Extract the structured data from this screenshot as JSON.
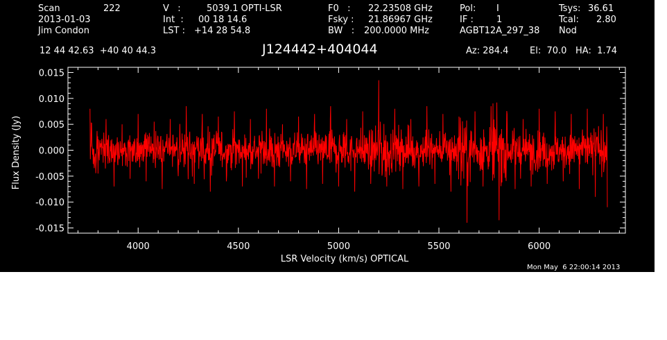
{
  "header": {
    "col1": [
      {
        "label": "Scan",
        "value": "222"
      },
      {
        "label": "2013-01-03",
        "value": ""
      },
      {
        "label": "Jim Condon",
        "value": ""
      }
    ],
    "col2": [
      {
        "label": "V   :",
        "value": "5039.1 OPTI-LSR"
      },
      {
        "label": "Int  :",
        "value": "00 18 14.6"
      },
      {
        "label": "LST :",
        "value": "+14 28 54.8"
      }
    ],
    "col3": [
      {
        "label": "F0   :",
        "value": "22.23508 GHz"
      },
      {
        "label": "Fsky :",
        "value": "21.86967 GHz"
      },
      {
        "label": "BW   :",
        "value": "200.0000 MHz"
      }
    ],
    "col4": [
      {
        "label": "Pol:",
        "value": "I"
      },
      {
        "label": "IF :",
        "value": "1"
      },
      {
        "label": "AGBT12A_297_38",
        "value": ""
      }
    ],
    "col5": [
      {
        "label": "Tsys:",
        "value": "36.61"
      },
      {
        "label": "Tcal:",
        "value": "2.80"
      },
      {
        "label": "Nod",
        "value": ""
      }
    ],
    "coords": "12 44 42.63  +40 40 44.3",
    "source": "J124442+404044",
    "az": "Az: 284.4",
    "el": "El:  70.0",
    "ha": "HA:  1.74"
  },
  "timestamp": "Mon May  6 22:00:14 2013",
  "colors": {
    "background": "#000000",
    "axes": "#ffffff",
    "trace": "#ff0000"
  },
  "chart_data": {
    "type": "line",
    "title": "J124442+404044",
    "xlabel": "LSR Velocity (km/s) OPTICAL",
    "ylabel": "Flux Density (Jy)",
    "xlim": [
      3650,
      6430
    ],
    "ylim": [
      -0.016,
      0.016
    ],
    "xticks": [
      4000,
      4500,
      5000,
      5500,
      6000
    ],
    "xtick_labels": [
      "4000",
      "4500",
      "5000",
      "5500",
      "6000"
    ],
    "yticks": [
      -0.015,
      -0.01,
      -0.005,
      0.0,
      0.005,
      0.01,
      0.015
    ],
    "ytick_labels": [
      "-0.015",
      "-0.010",
      "-0.005",
      "0.000",
      "0.005",
      "0.010",
      "0.015"
    ],
    "grid": false,
    "series": [
      {
        "color": "#ff0000",
        "x": [
          3760,
          3800,
          3840,
          3880,
          3920,
          3960,
          4000,
          4040,
          4080,
          4120,
          4160,
          4200,
          4240,
          4280,
          4320,
          4360,
          4400,
          4440,
          4480,
          4520,
          4560,
          4600,
          4640,
          4680,
          4720,
          4760,
          4800,
          4840,
          4880,
          4920,
          4960,
          5000,
          5040,
          5080,
          5120,
          5160,
          5200,
          5240,
          5280,
          5320,
          5360,
          5400,
          5440,
          5480,
          5520,
          5560,
          5600,
          5640,
          5680,
          5720,
          5760,
          5800,
          5840,
          5880,
          5920,
          5960,
          6000,
          6040,
          6080,
          6120,
          6160,
          6200,
          6240,
          6280,
          6320,
          6340
        ],
        "values": [
          0.008,
          -0.0045,
          0.006,
          -0.007,
          0.005,
          -0.0055,
          0.007,
          -0.006,
          0.0055,
          -0.0075,
          0.006,
          -0.005,
          0.0085,
          -0.0065,
          0.007,
          -0.008,
          0.0065,
          -0.006,
          0.0075,
          -0.007,
          0.006,
          -0.0055,
          0.008,
          -0.007,
          0.005,
          -0.006,
          0.0065,
          -0.0075,
          0.007,
          -0.0065,
          0.0085,
          -0.007,
          0.006,
          -0.008,
          0.0075,
          -0.0065,
          0.0135,
          -0.007,
          0.008,
          -0.0075,
          0.006,
          -0.007,
          0.0085,
          -0.0065,
          0.007,
          -0.008,
          0.0065,
          -0.014,
          0.0075,
          -0.007,
          0.0085,
          -0.0135,
          0.007,
          -0.0075,
          0.006,
          -0.007,
          0.008,
          -0.0065,
          0.0075,
          -0.006,
          0.007,
          -0.0075,
          0.008,
          -0.009,
          0.007,
          -0.011
        ]
      }
    ]
  }
}
